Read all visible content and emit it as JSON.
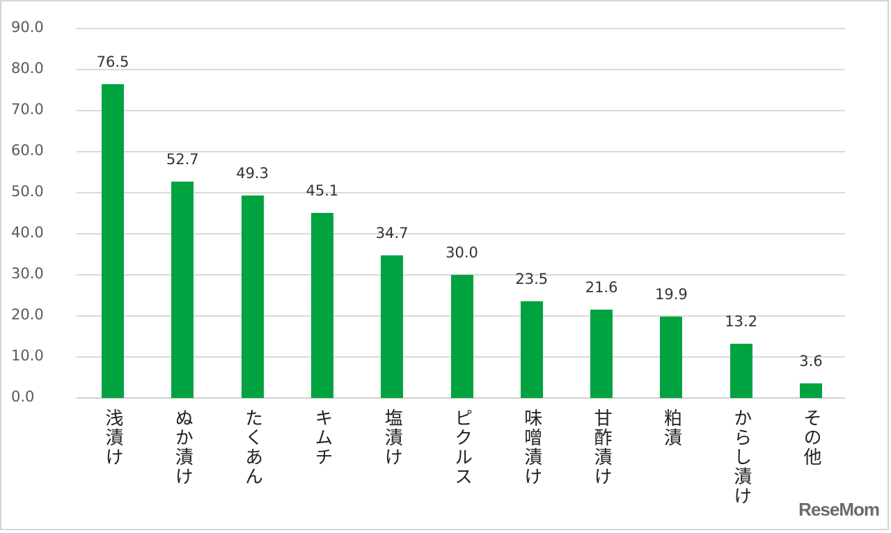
{
  "chart_data": {
    "type": "bar",
    "title": "",
    "xlabel": "",
    "ylabel": "",
    "ylim": [
      0,
      90
    ],
    "yticks": [
      "90.0",
      "80.0",
      "70.0",
      "60.0",
      "50.0",
      "40.0",
      "30.0",
      "20.0",
      "10.0",
      "0.0"
    ],
    "categories": [
      "浅漬け",
      "ぬか漬け",
      "たくあん",
      "キムチ",
      "塩漬け",
      "ピクルス",
      "味噌漬け",
      "甘酢漬け",
      "粕漬",
      "からし漬け",
      "その他"
    ],
    "values": [
      76.5,
      52.7,
      49.3,
      45.1,
      34.7,
      30.0,
      23.5,
      21.6,
      19.9,
      13.2,
      3.6
    ],
    "value_labels": [
      "76.5",
      "52.7",
      "49.3",
      "45.1",
      "34.7",
      "30.0",
      "23.5",
      "21.6",
      "19.9",
      "13.2",
      "3.6"
    ],
    "grid": true,
    "legend": "none",
    "bar_color": "#00a33f"
  },
  "watermark": "ReseMom"
}
